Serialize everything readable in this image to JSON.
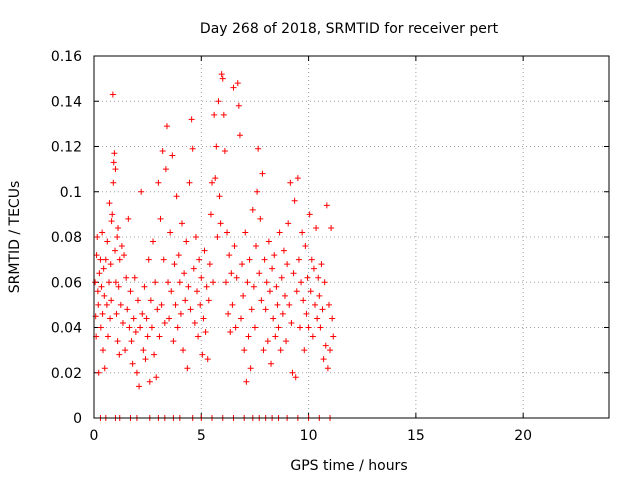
{
  "chart_data": {
    "type": "scatter",
    "title": "Day 268 of 2018, SRMTID for receiver pert",
    "xlabel": "GPS time / hours",
    "ylabel": "SRMTID / TECUs",
    "xlim": [
      0,
      24
    ],
    "ylim": [
      0,
      0.16
    ],
    "x_ticks": [
      0,
      5,
      10,
      15,
      20
    ],
    "x_tick_labels": [
      "0",
      "5",
      "10",
      "15",
      "20"
    ],
    "y_ticks": [
      0,
      0.02,
      0.04,
      0.06,
      0.08,
      0.1,
      0.12,
      0.14,
      0.16
    ],
    "y_tick_labels": [
      "0",
      "0.02",
      "0.04",
      "0.06",
      "0.08",
      "0.1",
      "0.12",
      "0.14",
      "0.16"
    ],
    "grid": true,
    "marker": "+",
    "color": "#ff0000",
    "series": [
      {
        "points": [
          [
            0.05,
            0.06
          ],
          [
            0.08,
            0.045
          ],
          [
            0.1,
            0.036
          ],
          [
            0.12,
            0.072
          ],
          [
            0.15,
            0.08
          ],
          [
            0.18,
            0.056
          ],
          [
            0.2,
            0.05
          ],
          [
            0.22,
            0.02
          ],
          [
            0.25,
            0.064
          ],
          [
            0.3,
            0.07
          ],
          [
            0.32,
            0.04
          ],
          [
            0.35,
            0.058
          ],
          [
            0.38,
            0.082
          ],
          [
            0.4,
            0.046
          ],
          [
            0.42,
            0.03
          ],
          [
            0.45,
            0.066
          ],
          [
            0.48,
            0.054
          ],
          [
            0.5,
            0.022
          ],
          [
            0.55,
            0.07
          ],
          [
            0.6,
            0.05
          ],
          [
            0.62,
            0.078
          ],
          [
            0.65,
            0.036
          ],
          [
            0.7,
            0.06
          ],
          [
            0.72,
            0.095
          ],
          [
            0.75,
            0.044
          ],
          [
            0.78,
            0.068
          ],
          [
            0.8,
            0.052
          ],
          [
            0.82,
            0.087
          ],
          [
            0.85,
            0.09
          ],
          [
            0.88,
            0.143
          ],
          [
            0.9,
            0.104
          ],
          [
            0.92,
            0.113
          ],
          [
            0.95,
            0.117
          ],
          [
            0.98,
            0.074
          ],
          [
            1.0,
            0.11
          ],
          [
            1.02,
            0.06
          ],
          [
            1.05,
            0.046
          ],
          [
            1.08,
            0.08
          ],
          [
            1.1,
            0.034
          ],
          [
            1.12,
            0.084
          ],
          [
            1.15,
            0.058
          ],
          [
            1.18,
            0.028
          ],
          [
            1.2,
            0.07
          ],
          [
            1.25,
            0.05
          ],
          [
            1.3,
            0.076
          ],
          [
            1.35,
            0.042
          ],
          [
            1.4,
            0.072
          ],
          [
            1.45,
            0.03
          ],
          [
            1.5,
            0.062
          ],
          [
            1.55,
            0.048
          ],
          [
            1.6,
            0.088
          ],
          [
            1.65,
            0.04
          ],
          [
            1.7,
            0.056
          ],
          [
            1.75,
            0.034
          ],
          [
            1.8,
            0.024
          ],
          [
            1.85,
            0.044
          ],
          [
            1.9,
            0.062
          ],
          [
            1.95,
            0.038
          ],
          [
            2.0,
            0.02
          ],
          [
            2.05,
            0.052
          ],
          [
            2.1,
            0.014
          ],
          [
            2.15,
            0.04
          ],
          [
            2.2,
            0.1
          ],
          [
            2.25,
            0.046
          ],
          [
            2.3,
            0.03
          ],
          [
            2.35,
            0.058
          ],
          [
            2.4,
            0.026
          ],
          [
            2.45,
            0.044
          ],
          [
            2.5,
            0.036
          ],
          [
            2.55,
            0.07
          ],
          [
            2.6,
            0.016
          ],
          [
            2.65,
            0.052
          ],
          [
            2.7,
            0.04
          ],
          [
            2.75,
            0.078
          ],
          [
            2.8,
            0.028
          ],
          [
            2.85,
            0.06
          ],
          [
            2.9,
            0.018
          ],
          [
            2.95,
            0.048
          ],
          [
            3.0,
            0.104
          ],
          [
            3.05,
            0.036
          ],
          [
            3.1,
            0.088
          ],
          [
            3.15,
            0.05
          ],
          [
            3.2,
            0.118
          ],
          [
            3.25,
            0.07
          ],
          [
            3.3,
            0.042
          ],
          [
            3.35,
            0.11
          ],
          [
            3.4,
            0.129
          ],
          [
            3.45,
            0.06
          ],
          [
            3.5,
            0.044
          ],
          [
            3.55,
            0.082
          ],
          [
            3.6,
            0.056
          ],
          [
            3.65,
            0.116
          ],
          [
            3.7,
            0.034
          ],
          [
            3.75,
            0.068
          ],
          [
            3.8,
            0.05
          ],
          [
            3.85,
            0.098
          ],
          [
            3.9,
            0.04
          ],
          [
            3.95,
            0.072
          ],
          [
            4.0,
            0.06
          ],
          [
            4.05,
            0.046
          ],
          [
            4.1,
            0.086
          ],
          [
            4.15,
            0.03
          ],
          [
            4.2,
            0.064
          ],
          [
            4.25,
            0.052
          ],
          [
            4.3,
            0.078
          ],
          [
            4.35,
            0.022
          ],
          [
            4.4,
            0.058
          ],
          [
            4.45,
            0.104
          ],
          [
            4.5,
            0.048
          ],
          [
            4.55,
            0.132
          ],
          [
            4.6,
            0.119
          ],
          [
            4.65,
            0.066
          ],
          [
            4.7,
            0.042
          ],
          [
            4.75,
            0.08
          ],
          [
            4.8,
            0.056
          ],
          [
            4.85,
            0.036
          ],
          [
            4.9,
            0.07
          ],
          [
            4.95,
            0.05
          ],
          [
            5.0,
            0.062
          ],
          [
            5.05,
            0.028
          ],
          [
            5.1,
            0.044
          ],
          [
            5.15,
            0.074
          ],
          [
            5.2,
            0.038
          ],
          [
            5.25,
            0.058
          ],
          [
            5.3,
            0.026
          ],
          [
            5.35,
            0.052
          ],
          [
            5.4,
            0.068
          ],
          [
            5.45,
            0.09
          ],
          [
            5.5,
            0.104
          ],
          [
            5.55,
            0.06
          ],
          [
            5.6,
            0.134
          ],
          [
            5.65,
            0.106
          ],
          [
            5.7,
            0.12
          ],
          [
            5.75,
            0.08
          ],
          [
            5.8,
            0.14
          ],
          [
            5.85,
            0.098
          ],
          [
            5.9,
            0.086
          ],
          [
            5.95,
            0.152
          ],
          [
            6.0,
            0.15
          ],
          [
            6.05,
            0.134
          ],
          [
            6.1,
            0.118
          ],
          [
            6.15,
            0.06
          ],
          [
            6.2,
            0.082
          ],
          [
            6.25,
            0.046
          ],
          [
            6.3,
            0.072
          ],
          [
            6.35,
            0.038
          ],
          [
            6.4,
            0.064
          ],
          [
            6.45,
            0.05
          ],
          [
            6.5,
            0.146
          ],
          [
            6.55,
            0.076
          ],
          [
            6.6,
            0.04
          ],
          [
            6.65,
            0.062
          ],
          [
            6.7,
            0.148
          ],
          [
            6.75,
            0.138
          ],
          [
            6.8,
            0.125
          ],
          [
            6.85,
            0.044
          ],
          [
            6.9,
            0.068
          ],
          [
            6.95,
            0.054
          ],
          [
            7.0,
            0.03
          ],
          [
            7.05,
            0.082
          ],
          [
            7.1,
            0.016
          ],
          [
            7.15,
            0.06
          ],
          [
            7.2,
            0.036
          ],
          [
            7.25,
            0.07
          ],
          [
            7.3,
            0.022
          ],
          [
            7.35,
            0.048
          ],
          [
            7.4,
            0.092
          ],
          [
            7.45,
            0.058
          ],
          [
            7.5,
            0.04
          ],
          [
            7.55,
            0.076
          ],
          [
            7.6,
            0.1
          ],
          [
            7.65,
            0.119
          ],
          [
            7.7,
            0.064
          ],
          [
            7.75,
            0.088
          ],
          [
            7.8,
            0.052
          ],
          [
            7.85,
            0.108
          ],
          [
            7.9,
            0.03
          ],
          [
            7.95,
            0.07
          ],
          [
            8.0,
            0.048
          ],
          [
            8.05,
            0.06
          ],
          [
            8.1,
            0.034
          ],
          [
            8.15,
            0.078
          ],
          [
            8.2,
            0.056
          ],
          [
            8.25,
            0.024
          ],
          [
            8.3,
            0.066
          ],
          [
            8.35,
            0.044
          ],
          [
            8.4,
            0.072
          ],
          [
            8.45,
            0.036
          ],
          [
            8.5,
            0.058
          ],
          [
            8.55,
            0.05
          ],
          [
            8.6,
            0.04
          ],
          [
            8.65,
            0.082
          ],
          [
            8.7,
            0.03
          ],
          [
            8.75,
            0.062
          ],
          [
            8.8,
            0.046
          ],
          [
            8.85,
            0.074
          ],
          [
            8.9,
            0.054
          ],
          [
            8.95,
            0.034
          ],
          [
            9.0,
            0.068
          ],
          [
            9.05,
            0.086
          ],
          [
            9.1,
            0.05
          ],
          [
            9.15,
            0.104
          ],
          [
            9.2,
            0.042
          ],
          [
            9.25,
            0.02
          ],
          [
            9.3,
            0.064
          ],
          [
            9.35,
            0.096
          ],
          [
            9.4,
            0.018
          ],
          [
            9.45,
            0.056
          ],
          [
            9.5,
            0.106
          ],
          [
            9.55,
            0.07
          ],
          [
            9.6,
            0.04
          ],
          [
            9.65,
            0.06
          ],
          [
            9.7,
            0.082
          ],
          [
            9.75,
            0.052
          ],
          [
            9.8,
            0.03
          ],
          [
            9.85,
            0.076
          ],
          [
            9.9,
            0.046
          ],
          [
            9.95,
            0.062
          ],
          [
            10.0,
            0.04
          ],
          [
            10.05,
            0.09
          ],
          [
            10.1,
            0.056
          ],
          [
            10.15,
            0.07
          ],
          [
            10.2,
            0.036
          ],
          [
            10.25,
            0.066
          ],
          [
            10.3,
            0.05
          ],
          [
            10.35,
            0.084
          ],
          [
            10.4,
            0.044
          ],
          [
            10.45,
            0.062
          ],
          [
            10.5,
            0.054
          ],
          [
            10.55,
            0.04
          ],
          [
            10.6,
            0.068
          ],
          [
            10.65,
            0.048
          ],
          [
            10.7,
            0.026
          ],
          [
            10.75,
            0.06
          ],
          [
            10.8,
            0.032
          ],
          [
            10.85,
            0.094
          ],
          [
            10.9,
            0.022
          ],
          [
            10.95,
            0.05
          ],
          [
            11.0,
            0.03
          ],
          [
            11.05,
            0.084
          ],
          [
            11.1,
            0.044
          ],
          [
            11.15,
            0.036
          ],
          [
            0.3,
            0.0
          ],
          [
            0.55,
            0.0
          ],
          [
            1.0,
            0.0
          ],
          [
            1.2,
            0.0
          ],
          [
            1.7,
            0.0
          ],
          [
            2.0,
            0.0
          ],
          [
            2.6,
            0.0
          ],
          [
            3.0,
            0.0
          ],
          [
            3.3,
            0.0
          ],
          [
            3.7,
            0.0
          ],
          [
            4.0,
            0.0
          ],
          [
            4.6,
            0.0
          ],
          [
            5.0,
            0.0
          ],
          [
            5.5,
            0.0
          ],
          [
            6.0,
            0.0
          ],
          [
            6.5,
            0.0
          ],
          [
            7.0,
            0.0
          ],
          [
            7.4,
            0.0
          ],
          [
            7.7,
            0.0
          ],
          [
            8.0,
            0.0
          ],
          [
            8.3,
            0.0
          ],
          [
            8.6,
            0.0
          ],
          [
            9.0,
            0.0
          ],
          [
            9.5,
            0.0
          ],
          [
            10.0,
            0.0
          ],
          [
            10.5,
            0.0
          ],
          [
            11.0,
            0.0
          ]
        ]
      }
    ]
  }
}
